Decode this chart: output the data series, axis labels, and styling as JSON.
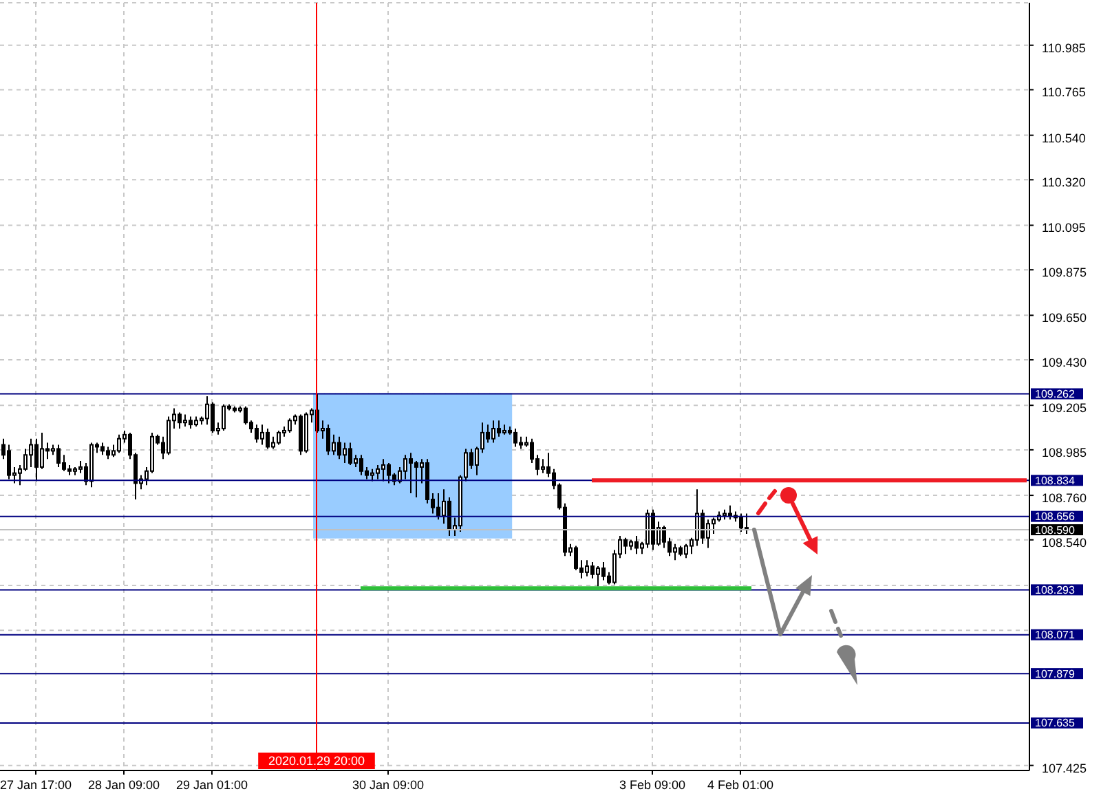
{
  "chart_data": {
    "type": "candlestick",
    "color": "#000000",
    "categories": [
      null,
      null,
      null,
      null,
      null,
      null,
      "27 Jan 17:00",
      null,
      null,
      null,
      null,
      null,
      null,
      null,
      null,
      null,
      null,
      null,
      null,
      null,
      null,
      null,
      "28 Jan 09:00",
      null,
      null,
      null,
      null,
      null,
      null,
      null,
      null,
      null,
      null,
      null,
      null,
      null,
      null,
      null,
      "29 Jan 01:00",
      null,
      null,
      null,
      null,
      null,
      null,
      null,
      null,
      null,
      null,
      null,
      null,
      null,
      null,
      null,
      null,
      null,
      null,
      "2020.01.29 20:00",
      null,
      null,
      null,
      null,
      null,
      null,
      null,
      null,
      null,
      null,
      null,
      null,
      "30 Jan 09:00",
      null,
      null,
      null,
      null,
      null,
      null,
      null,
      null,
      null,
      null,
      null,
      null,
      null,
      null,
      null,
      null,
      null,
      null,
      null,
      null,
      null,
      null,
      null,
      null,
      null,
      null,
      null,
      null,
      null,
      null,
      null,
      null,
      null,
      null,
      null,
      null,
      null,
      null,
      null,
      null,
      null,
      null,
      null,
      null,
      null,
      null,
      null,
      "3 Feb 09:00",
      null,
      null,
      null,
      null,
      null,
      null,
      null,
      null,
      null,
      null,
      null,
      null,
      null,
      null,
      null,
      "4 Feb 01:00",
      null,
      null,
      null,
      null,
      null,
      null,
      null,
      null,
      null,
      null,
      null,
      null,
      null,
      null,
      null,
      null,
      null,
      null,
      null,
      null,
      null,
      null,
      null,
      null,
      null,
      null,
      null,
      null,
      null,
      null,
      null,
      null,
      null,
      null,
      null,
      null,
      null,
      null,
      null,
      null,
      null,
      null,
      null,
      null,
      null,
      null,
      null,
      null,
      null,
      null,
      null,
      null
    ],
    "ohlc": [
      [
        109.01,
        109.04,
        108.94,
        108.96
      ],
      [
        108.98,
        109.01,
        108.84,
        108.86
      ],
      [
        108.86,
        108.9,
        108.82,
        108.87
      ],
      [
        108.87,
        108.91,
        108.81,
        108.89
      ],
      [
        108.89,
        108.99,
        108.88,
        108.96
      ],
      [
        108.96,
        109.04,
        108.9,
        109.01
      ],
      [
        109.01,
        109.04,
        108.83,
        108.9
      ],
      [
        108.9,
        109.07,
        108.89,
        108.99
      ],
      [
        108.99,
        109.02,
        108.94,
        108.98
      ],
      [
        108.98,
        109.01,
        108.96,
        108.99
      ],
      [
        108.99,
        109.01,
        108.9,
        108.92
      ],
      [
        108.92,
        108.96,
        108.88,
        108.89
      ],
      [
        108.89,
        108.91,
        108.86,
        108.88
      ],
      [
        108.88,
        108.9,
        108.86,
        108.89
      ],
      [
        108.89,
        108.93,
        108.87,
        108.9
      ],
      [
        108.9,
        108.92,
        108.81,
        108.83
      ],
      [
        108.83,
        109.02,
        108.8,
        109.01
      ],
      [
        109.01,
        109.02,
        108.97,
        109.0
      ],
      [
        109.0,
        109.02,
        108.96,
        108.98
      ],
      [
        108.98,
        109.0,
        108.94,
        108.96
      ],
      [
        108.96,
        109.01,
        108.95,
        108.98
      ],
      [
        108.98,
        109.06,
        108.97,
        109.04
      ],
      [
        109.04,
        109.08,
        109.02,
        109.06
      ],
      [
        109.06,
        109.07,
        108.94,
        108.96
      ],
      [
        108.96,
        108.97,
        108.74,
        108.82
      ],
      [
        108.82,
        108.86,
        108.79,
        108.84
      ],
      [
        108.84,
        108.9,
        108.81,
        108.88
      ],
      [
        108.88,
        109.07,
        108.87,
        109.05
      ],
      [
        109.05,
        109.06,
        109.01,
        109.02
      ],
      [
        109.02,
        109.05,
        108.94,
        108.97
      ],
      [
        108.97,
        109.15,
        108.96,
        109.13
      ],
      [
        109.13,
        109.19,
        109.09,
        109.16
      ],
      [
        109.16,
        109.17,
        109.09,
        109.12
      ],
      [
        109.12,
        109.16,
        109.1,
        109.13
      ],
      [
        109.13,
        109.15,
        109.09,
        109.11
      ],
      [
        109.11,
        109.15,
        109.1,
        109.13
      ],
      [
        109.13,
        109.15,
        109.11,
        109.14
      ],
      [
        109.14,
        109.25,
        109.11,
        109.21
      ],
      [
        109.21,
        109.22,
        109.07,
        109.08
      ],
      [
        109.08,
        109.12,
        109.06,
        109.09
      ],
      [
        109.09,
        109.21,
        109.08,
        109.2
      ],
      [
        109.2,
        109.21,
        109.18,
        109.19
      ],
      [
        109.19,
        109.2,
        109.17,
        109.18
      ],
      [
        109.18,
        109.2,
        109.17,
        109.19
      ],
      [
        109.19,
        109.2,
        109.11,
        109.12
      ],
      [
        109.12,
        109.13,
        109.07,
        109.09
      ],
      [
        109.09,
        109.11,
        109.02,
        109.04
      ],
      [
        109.04,
        109.11,
        109.01,
        109.07
      ],
      [
        109.07,
        109.09,
        108.99,
        109.0
      ],
      [
        109.0,
        109.05,
        108.99,
        109.02
      ],
      [
        109.02,
        109.08,
        109.01,
        109.07
      ],
      [
        109.07,
        109.1,
        109.05,
        109.08
      ],
      [
        109.08,
        109.14,
        109.07,
        109.13
      ],
      [
        109.13,
        109.16,
        109.11,
        109.15
      ],
      [
        109.15,
        109.16,
        108.96,
        108.98
      ],
      [
        108.98,
        109.17,
        108.97,
        109.16
      ],
      [
        109.16,
        109.19,
        109.12,
        109.18
      ],
      [
        109.18,
        109.262,
        109.07,
        109.08
      ],
      [
        109.08,
        109.13,
        109.04,
        109.09
      ],
      [
        109.09,
        109.11,
        108.96,
        108.98
      ],
      [
        108.98,
        109.06,
        108.96,
        109.02
      ],
      [
        109.02,
        109.05,
        108.94,
        108.96
      ],
      [
        108.96,
        109.02,
        108.92,
        108.99
      ],
      [
        108.99,
        109.02,
        108.91,
        108.92
      ],
      [
        108.92,
        108.96,
        108.9,
        108.94
      ],
      [
        108.94,
        108.96,
        108.86,
        108.88
      ],
      [
        108.88,
        108.9,
        108.84,
        108.86
      ],
      [
        108.86,
        108.89,
        108.83,
        108.87
      ],
      [
        108.87,
        108.91,
        108.84,
        108.89
      ],
      [
        108.89,
        108.94,
        108.83,
        108.91
      ],
      [
        108.91,
        108.92,
        108.82,
        108.86
      ],
      [
        108.86,
        108.87,
        108.81,
        108.83
      ],
      [
        108.83,
        108.9,
        108.82,
        108.88
      ],
      [
        108.88,
        108.96,
        108.84,
        108.94
      ],
      [
        108.94,
        108.97,
        108.77,
        108.92
      ],
      [
        108.92,
        108.93,
        108.75,
        108.9
      ],
      [
        108.9,
        108.94,
        108.82,
        108.92
      ],
      [
        108.92,
        108.94,
        108.72,
        108.74
      ],
      [
        108.74,
        108.77,
        108.67,
        108.7
      ],
      [
        108.7,
        108.77,
        108.64,
        108.66
      ],
      [
        108.66,
        108.79,
        108.62,
        108.73
      ],
      [
        108.73,
        108.75,
        108.56,
        108.59
      ],
      [
        108.59,
        108.65,
        108.56,
        108.61
      ],
      [
        108.61,
        108.86,
        108.58,
        108.85
      ],
      [
        108.85,
        108.99,
        108.83,
        108.97
      ],
      [
        108.97,
        108.99,
        108.89,
        108.91
      ],
      [
        108.91,
        109.0,
        108.86,
        108.99
      ],
      [
        108.99,
        109.12,
        108.97,
        109.07
      ],
      [
        109.07,
        109.11,
        109.02,
        109.04
      ],
      [
        109.04,
        109.13,
        109.02,
        109.09
      ],
      [
        109.09,
        109.13,
        109.05,
        109.07
      ],
      [
        109.07,
        109.11,
        109.06,
        109.08
      ],
      [
        109.08,
        109.1,
        109.06,
        109.07
      ],
      [
        109.07,
        109.09,
        109.0,
        109.02
      ],
      [
        109.02,
        109.05,
        108.99,
        109.01
      ],
      [
        109.01,
        109.05,
        109.0,
        109.02
      ],
      [
        109.02,
        109.04,
        108.92,
        108.94
      ],
      [
        108.94,
        108.96,
        108.86,
        108.89
      ],
      [
        108.89,
        108.94,
        108.87,
        108.9
      ],
      [
        108.9,
        108.97,
        108.85,
        108.87
      ],
      [
        108.87,
        108.89,
        108.79,
        108.81
      ],
      [
        108.81,
        108.82,
        108.69,
        108.7
      ],
      [
        108.7,
        108.72,
        108.46,
        108.48
      ],
      [
        108.48,
        108.52,
        108.46,
        108.5
      ],
      [
        108.5,
        108.51,
        108.39,
        108.4
      ],
      [
        108.4,
        108.44,
        108.35,
        108.38
      ],
      [
        108.38,
        108.44,
        108.36,
        108.41
      ],
      [
        108.41,
        108.43,
        108.35,
        108.37
      ],
      [
        108.37,
        108.41,
        108.31,
        108.4
      ],
      [
        108.4,
        108.43,
        108.34,
        108.36
      ],
      [
        108.36,
        108.38,
        108.32,
        108.33
      ],
      [
        108.33,
        108.49,
        108.32,
        108.47
      ],
      [
        108.47,
        108.56,
        108.45,
        108.54
      ],
      [
        108.54,
        108.55,
        108.47,
        108.51
      ],
      [
        108.51,
        108.54,
        108.49,
        108.53
      ],
      [
        108.53,
        108.56,
        108.47,
        108.5
      ],
      [
        108.5,
        108.53,
        108.47,
        108.52
      ],
      [
        108.52,
        108.69,
        108.5,
        108.67
      ],
      [
        108.67,
        108.69,
        108.49,
        108.52
      ],
      [
        108.52,
        108.63,
        108.51,
        108.6
      ],
      [
        108.6,
        108.61,
        108.5,
        108.53
      ],
      [
        108.53,
        108.55,
        108.46,
        108.48
      ],
      [
        108.48,
        108.52,
        108.44,
        108.5
      ],
      [
        108.5,
        108.51,
        108.46,
        108.47
      ],
      [
        108.47,
        108.52,
        108.45,
        108.51
      ],
      [
        108.51,
        108.55,
        108.47,
        108.54
      ],
      [
        108.54,
        108.79,
        108.51,
        108.67
      ],
      [
        108.67,
        108.69,
        108.52,
        108.55
      ],
      [
        108.55,
        108.64,
        108.5,
        108.62
      ],
      [
        108.62,
        108.65,
        108.57,
        108.64
      ],
      [
        108.64,
        108.68,
        108.63,
        108.66
      ],
      [
        108.66,
        108.69,
        108.64,
        108.67
      ],
      [
        108.67,
        108.71,
        108.64,
        108.66
      ],
      [
        108.66,
        108.68,
        108.63,
        108.65
      ],
      [
        108.65,
        108.67,
        108.58,
        108.6
      ],
      [
        108.6,
        108.67,
        108.57,
        108.59
      ],
      null,
      null,
      null,
      null,
      null,
      null,
      null,
      null,
      null,
      null,
      null,
      null,
      null,
      null,
      null,
      null,
      null,
      null,
      null,
      null,
      null,
      null,
      null,
      null,
      null,
      null,
      null,
      null,
      null,
      null,
      null,
      null,
      null,
      null,
      null,
      null,
      null,
      null,
      null,
      null,
      null,
      null,
      null,
      null,
      null,
      null,
      null,
      null,
      null,
      null,
      null
    ],
    "series": [
      {
        "type": "bar",
        "color": "#99ccff",
        "values": [
          null,
          null,
          null,
          null,
          null,
          null,
          null,
          null,
          null,
          null,
          null,
          null,
          null,
          null,
          null,
          null,
          null,
          null,
          null,
          null,
          null,
          null,
          null,
          null,
          null,
          null,
          null,
          null,
          null,
          null,
          null,
          null,
          null,
          null,
          null,
          null,
          null,
          null,
          null,
          null,
          null,
          null,
          null,
          null,
          null,
          null,
          null,
          null,
          null,
          null,
          null,
          null,
          null,
          null,
          null,
          null,
          null,
          0.712,
          0.712,
          0.712,
          0.712,
          0.712,
          0.712,
          0.712,
          0.712,
          0.712,
          0.712,
          0.712,
          0.712,
          0.712,
          0.712,
          0.712,
          0.712,
          0.712,
          0.712,
          0.712,
          0.712,
          0.712,
          0.712,
          0.712,
          0.712,
          0.712,
          0.712,
          0.712,
          0.712,
          0.712,
          0.712,
          0.712,
          0.712,
          0.712,
          0.712,
          0.712,
          0.712,
          null,
          null,
          null,
          null,
          null,
          null,
          null,
          null,
          null,
          null,
          null,
          null,
          null,
          null,
          null,
          null,
          null,
          null,
          null,
          null,
          null,
          null,
          null,
          null,
          null,
          null,
          null,
          null,
          null,
          null,
          null,
          null,
          null,
          null,
          null,
          null,
          null,
          null,
          null,
          null,
          null,
          null,
          null,
          null,
          null,
          null,
          null,
          null,
          null,
          null,
          null,
          null,
          null,
          null,
          null,
          null,
          null,
          null,
          null,
          null,
          null,
          null,
          null,
          null,
          null,
          null,
          null,
          null,
          null,
          null,
          null,
          null,
          null,
          null,
          null,
          null,
          null,
          null,
          null,
          null,
          null,
          null,
          null,
          null,
          null,
          null,
          null,
          null,
          null,
          null,
          null,
          null,
          null,
          null
        ],
        "base": [
          null,
          null,
          null,
          null,
          null,
          null,
          null,
          null,
          null,
          null,
          null,
          null,
          null,
          null,
          null,
          null,
          null,
          null,
          null,
          null,
          null,
          null,
          null,
          null,
          null,
          null,
          null,
          null,
          null,
          null,
          null,
          null,
          null,
          null,
          null,
          null,
          null,
          null,
          null,
          null,
          null,
          null,
          null,
          null,
          null,
          null,
          null,
          null,
          null,
          null,
          null,
          null,
          null,
          null,
          null,
          null,
          null,
          108.55,
          108.55,
          108.55,
          108.55,
          108.55,
          108.55,
          108.55,
          108.55,
          108.55,
          108.55,
          108.55,
          108.55,
          108.55,
          108.55,
          108.55,
          108.55,
          108.55,
          108.55,
          108.55,
          108.55,
          108.55,
          108.55,
          108.55,
          108.55,
          108.55,
          108.55,
          108.55,
          108.55,
          108.55,
          108.55,
          108.55,
          108.55,
          108.55,
          108.55,
          108.55,
          108.55,
          null,
          null,
          null,
          null,
          null,
          null,
          null,
          null,
          null,
          null,
          null,
          null,
          null,
          null,
          null,
          null,
          null,
          null,
          null,
          null,
          null,
          null,
          null,
          null,
          null,
          null,
          null,
          null,
          null,
          null,
          null,
          null,
          null,
          null,
          null,
          null,
          null,
          null,
          null,
          null,
          null,
          null,
          null,
          null,
          null,
          null,
          null,
          null,
          null,
          null,
          null,
          null,
          null,
          null,
          null,
          null,
          null,
          null,
          null,
          null,
          null,
          null,
          null,
          null,
          null,
          null,
          null,
          null,
          null,
          null,
          null,
          null,
          null,
          null,
          null,
          null,
          null,
          null,
          null,
          null,
          null,
          null,
          null,
          null,
          null,
          null,
          null,
          null,
          null,
          null,
          null,
          null,
          null,
          null
        ]
      },
      {
        "type": "line",
        "color": "#ee1c25",
        "values": [
          null,
          null,
          null,
          null,
          null,
          null,
          null,
          null,
          null,
          null,
          null,
          null,
          null,
          null,
          null,
          null,
          null,
          null,
          null,
          null,
          null,
          null,
          null,
          null,
          null,
          null,
          null,
          null,
          null,
          null,
          null,
          null,
          null,
          null,
          null,
          null,
          null,
          null,
          null,
          null,
          null,
          null,
          null,
          null,
          null,
          null,
          null,
          null,
          null,
          null,
          null,
          null,
          null,
          null,
          null,
          null,
          null,
          null,
          null,
          null,
          null,
          null,
          null,
          null,
          null,
          null,
          null,
          null,
          null,
          null,
          null,
          null,
          null,
          null,
          null,
          null,
          null,
          null,
          null,
          null,
          null,
          null,
          null,
          null,
          null,
          null,
          null,
          null,
          null,
          null,
          null,
          null,
          null,
          null,
          null,
          null,
          null,
          null,
          null,
          null,
          null,
          null,
          null,
          null,
          null,
          null,
          null,
          108.834,
          108.834,
          108.834,
          108.834,
          108.834,
          108.834,
          108.834,
          108.834,
          108.834,
          108.834,
          108.834,
          108.834,
          108.834,
          108.834,
          108.834,
          108.834,
          108.834,
          108.834,
          108.834,
          108.834,
          108.834,
          108.834,
          108.834,
          108.834,
          108.834,
          108.834,
          108.834,
          108.834,
          108.834,
          108.834,
          108.834,
          108.834,
          108.834,
          108.834,
          108.834,
          108.834,
          108.834,
          108.834,
          108.834,
          108.834,
          108.834,
          108.834,
          108.834,
          108.834,
          108.834,
          108.834,
          108.834,
          108.834,
          108.834,
          108.834,
          108.834,
          108.834,
          108.834,
          108.834,
          108.834,
          108.834,
          108.834,
          108.834,
          108.834,
          108.834,
          108.834,
          108.834,
          108.834,
          108.834,
          108.834,
          108.834,
          108.834,
          108.834,
          108.834,
          108.834,
          108.834,
          108.834,
          108.834,
          108.834,
          108.834,
          108.834,
          108.834,
          108.834,
          108.834,
          108.834
        ]
      },
      {
        "type": "line",
        "color": "#2fbf3a",
        "values": [
          null,
          null,
          null,
          null,
          null,
          null,
          null,
          null,
          null,
          null,
          null,
          null,
          null,
          null,
          null,
          null,
          null,
          null,
          null,
          null,
          null,
          null,
          null,
          null,
          null,
          null,
          null,
          null,
          null,
          null,
          null,
          null,
          null,
          null,
          null,
          null,
          null,
          null,
          null,
          null,
          null,
          null,
          null,
          null,
          null,
          null,
          null,
          null,
          null,
          null,
          null,
          null,
          null,
          null,
          null,
          null,
          null,
          null,
          null,
          null,
          null,
          null,
          null,
          null,
          null,
          108.3,
          108.3,
          108.3,
          108.3,
          108.3,
          108.3,
          108.3,
          108.3,
          108.3,
          108.3,
          108.3,
          108.3,
          108.3,
          108.3,
          108.3,
          108.3,
          108.3,
          108.3,
          108.3,
          108.3,
          108.3,
          108.3,
          108.3,
          108.3,
          108.3,
          108.3,
          108.3,
          108.3,
          108.3,
          108.3,
          108.3,
          108.3,
          108.3,
          108.3,
          108.3,
          108.3,
          108.3,
          108.3,
          108.3,
          108.3,
          108.3,
          108.3,
          108.3,
          108.3,
          108.3,
          108.3,
          108.3,
          108.3,
          108.3,
          108.3,
          108.3,
          108.3,
          108.3,
          108.3,
          108.3,
          108.3,
          108.3,
          108.3,
          108.3,
          108.3,
          108.3,
          108.3,
          108.3,
          108.3,
          108.3,
          108.3,
          108.3,
          108.3,
          108.3,
          108.3,
          108.3,
          108.3,
          null,
          null,
          null,
          null,
          null,
          null,
          null,
          null,
          null,
          null,
          null,
          null,
          null,
          null,
          null,
          null,
          null,
          null,
          null,
          null,
          null,
          null,
          null,
          null,
          null,
          null,
          null,
          null,
          null,
          null,
          null,
          null,
          null,
          null,
          null,
          null,
          null,
          null,
          null,
          null,
          null,
          null,
          null,
          null,
          null,
          null,
          null,
          null,
          null,
          null
        ]
      }
    ],
    "ylim": [
      107.4,
      111.195
    ],
    "yticks": [
      107.425,
      {
        "value": 108.0925,
        "label": null
      },
      {
        "value": 108.315,
        "label": null
      },
      {
        "value": 108.54,
        "label": "108.540"
      },
      {
        "value": 108.76,
        "label": "108.760"
      },
      108.985,
      109.205,
      {
        "value": 109.43,
        "label": "109.430"
      },
      {
        "value": 109.65,
        "label": "109.650"
      },
      109.875,
      110.095,
      {
        "value": 110.32,
        "label": "110.320"
      },
      {
        "value": 110.54,
        "label": "110.540"
      },
      110.765,
      110.985
    ],
    "ref_lines": [
      {
        "axis": "y",
        "value": 109.262,
        "label": "109.262",
        "color": "#000080"
      },
      {
        "axis": "y",
        "value": 108.834,
        "label": "108.834",
        "color": "#000080"
      },
      {
        "axis": "y",
        "value": 108.656,
        "label": "108.656",
        "color": "#000080"
      },
      {
        "axis": "y",
        "value": 108.59,
        "label": "108.590",
        "color": "#c0c0c0"
      },
      {
        "axis": "y",
        "value": 108.293,
        "label": "108.293",
        "color": "#000080"
      },
      {
        "axis": "y",
        "value": 108.071,
        "label": "108.071",
        "color": "#000080"
      },
      {
        "axis": "y",
        "value": 107.879,
        "label": "107.879",
        "color": "#000080"
      },
      {
        "axis": "y",
        "value": 107.635,
        "label": "107.635",
        "color": "#000080"
      },
      {
        "axis": "x",
        "value": "2020.01.29 20:00",
        "color": "#ff0000"
      }
    ],
    "grid": true
  }
}
